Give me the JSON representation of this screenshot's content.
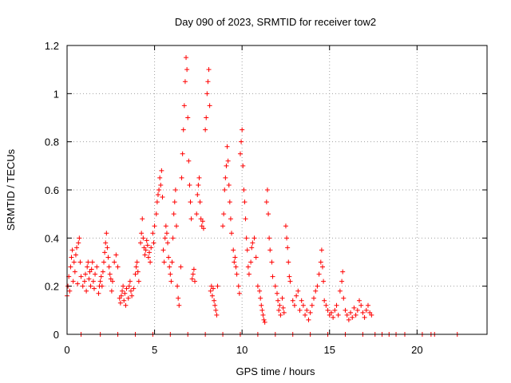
{
  "chart_data": {
    "type": "scatter",
    "title": "Day 090 of 2023, SRMTID for receiver tow2",
    "xlabel": "GPS time / hours",
    "ylabel": "SRMTID / TECUs",
    "xlim": [
      0,
      24
    ],
    "ylim": [
      0,
      1.2
    ],
    "xticks": [
      0,
      5,
      10,
      15,
      20
    ],
    "yticks": [
      0,
      0.2,
      0.4,
      0.6,
      0.8,
      1,
      1.2
    ],
    "xtick_labels": [
      "0",
      "5",
      "10",
      "15",
      "20"
    ],
    "ytick_labels": [
      "0",
      "0.2",
      "0.4",
      "0.6",
      "0.8",
      "1",
      "1.2"
    ],
    "grid": true,
    "marker": "plus",
    "series": [
      {
        "name": "tow2",
        "color": "#ff0000",
        "points": [
          [
            0.0,
            0.16
          ],
          [
            0.05,
            0.2
          ],
          [
            0.1,
            0.24
          ],
          [
            0.15,
            0.18
          ],
          [
            0.2,
            0.28
          ],
          [
            0.25,
            0.32
          ],
          [
            0.3,
            0.35
          ],
          [
            0.35,
            0.22
          ],
          [
            0.4,
            0.3
          ],
          [
            0.45,
            0.26
          ],
          [
            0.5,
            0.33
          ],
          [
            0.55,
            0.36
          ],
          [
            0.6,
            0.21
          ],
          [
            0.65,
            0.38
          ],
          [
            0.7,
            0.4
          ],
          [
            0.75,
            0.3
          ],
          [
            0.8,
            0.24
          ],
          [
            0.9,
            0.2
          ],
          [
            1.0,
            0.22
          ],
          [
            1.05,
            0.25
          ],
          [
            1.1,
            0.18
          ],
          [
            1.15,
            0.28
          ],
          [
            1.2,
            0.3
          ],
          [
            1.25,
            0.23
          ],
          [
            1.3,
            0.26
          ],
          [
            1.35,
            0.2
          ],
          [
            1.4,
            0.27
          ],
          [
            1.45,
            0.3
          ],
          [
            1.5,
            0.22
          ],
          [
            1.55,
            0.19
          ],
          [
            1.6,
            0.25
          ],
          [
            1.7,
            0.28
          ],
          [
            1.8,
            0.17
          ],
          [
            1.85,
            0.2
          ],
          [
            1.9,
            0.22
          ],
          [
            1.95,
            0.24
          ],
          [
            2.0,
            0.2
          ],
          [
            2.05,
            0.26
          ],
          [
            2.1,
            0.3
          ],
          [
            2.15,
            0.34
          ],
          [
            2.2,
            0.38
          ],
          [
            2.25,
            0.42
          ],
          [
            2.3,
            0.36
          ],
          [
            2.35,
            0.32
          ],
          [
            2.4,
            0.28
          ],
          [
            2.45,
            0.25
          ],
          [
            2.5,
            0.23
          ],
          [
            2.55,
            0.18
          ],
          [
            2.6,
            0.22
          ],
          [
            2.7,
            0.3
          ],
          [
            2.8,
            0.33
          ],
          [
            2.9,
            0.28
          ],
          [
            3.0,
            0.15
          ],
          [
            3.05,
            0.13
          ],
          [
            3.1,
            0.16
          ],
          [
            3.15,
            0.18
          ],
          [
            3.2,
            0.2
          ],
          [
            3.25,
            0.14
          ],
          [
            3.3,
            0.17
          ],
          [
            3.35,
            0.12
          ],
          [
            3.4,
            0.19
          ],
          [
            3.5,
            0.15
          ],
          [
            3.55,
            0.2
          ],
          [
            3.6,
            0.22
          ],
          [
            3.65,
            0.18
          ],
          [
            3.7,
            0.16
          ],
          [
            3.8,
            0.19
          ],
          [
            3.9,
            0.25
          ],
          [
            3.95,
            0.28
          ],
          [
            4.0,
            0.3
          ],
          [
            4.05,
            0.26
          ],
          [
            4.1,
            0.22
          ],
          [
            4.2,
            0.38
          ],
          [
            4.25,
            0.42
          ],
          [
            4.3,
            0.48
          ],
          [
            4.35,
            0.4
          ],
          [
            4.4,
            0.36
          ],
          [
            4.45,
            0.33
          ],
          [
            4.5,
            0.35
          ],
          [
            4.55,
            0.39
          ],
          [
            4.6,
            0.37
          ],
          [
            4.65,
            0.32
          ],
          [
            4.7,
            0.34
          ],
          [
            4.75,
            0.3
          ],
          [
            4.8,
            0.36
          ],
          [
            4.9,
            0.42
          ],
          [
            4.95,
            0.38
          ],
          [
            5.0,
            0.45
          ],
          [
            5.1,
            0.5
          ],
          [
            5.15,
            0.55
          ],
          [
            5.2,
            0.58
          ],
          [
            5.25,
            0.6
          ],
          [
            5.3,
            0.65
          ],
          [
            5.35,
            0.62
          ],
          [
            5.4,
            0.68
          ],
          [
            5.45,
            0.57
          ],
          [
            5.5,
            0.35
          ],
          [
            5.55,
            0.3
          ],
          [
            5.6,
            0.4
          ],
          [
            5.65,
            0.45
          ],
          [
            5.7,
            0.42
          ],
          [
            5.75,
            0.38
          ],
          [
            5.8,
            0.32
          ],
          [
            5.85,
            0.28
          ],
          [
            5.9,
            0.25
          ],
          [
            5.95,
            0.22
          ],
          [
            6.0,
            0.3
          ],
          [
            6.05,
            0.4
          ],
          [
            6.1,
            0.5
          ],
          [
            6.15,
            0.55
          ],
          [
            6.2,
            0.6
          ],
          [
            6.25,
            0.45
          ],
          [
            6.3,
            0.2
          ],
          [
            6.35,
            0.15
          ],
          [
            6.4,
            0.12
          ],
          [
            6.5,
            0.28
          ],
          [
            6.55,
            0.65
          ],
          [
            6.6,
            0.75
          ],
          [
            6.65,
            0.85
          ],
          [
            6.7,
            0.95
          ],
          [
            6.75,
            1.05
          ],
          [
            6.8,
            1.15
          ],
          [
            6.85,
            1.1
          ],
          [
            6.9,
            0.9
          ],
          [
            6.95,
            0.72
          ],
          [
            7.0,
            0.62
          ],
          [
            7.05,
            0.55
          ],
          [
            7.1,
            0.48
          ],
          [
            7.15,
            0.23
          ],
          [
            7.2,
            0.25
          ],
          [
            7.25,
            0.27
          ],
          [
            7.3,
            0.22
          ],
          [
            7.4,
            0.5
          ],
          [
            7.45,
            0.58
          ],
          [
            7.5,
            0.62
          ],
          [
            7.55,
            0.65
          ],
          [
            7.6,
            0.55
          ],
          [
            7.65,
            0.48
          ],
          [
            7.7,
            0.45
          ],
          [
            7.75,
            0.47
          ],
          [
            7.8,
            0.44
          ],
          [
            7.9,
            0.85
          ],
          [
            7.95,
            0.9
          ],
          [
            8.0,
            1.0
          ],
          [
            8.05,
            1.05
          ],
          [
            8.1,
            1.1
          ],
          [
            8.15,
            0.95
          ],
          [
            8.2,
            0.18
          ],
          [
            8.25,
            0.2
          ],
          [
            8.3,
            0.16
          ],
          [
            8.35,
            0.19
          ],
          [
            8.4,
            0.14
          ],
          [
            8.45,
            0.12
          ],
          [
            8.5,
            0.1
          ],
          [
            8.55,
            0.08
          ],
          [
            8.6,
            0.2
          ],
          [
            8.9,
            0.45
          ],
          [
            8.95,
            0.5
          ],
          [
            9.0,
            0.6
          ],
          [
            9.05,
            0.65
          ],
          [
            9.1,
            0.7
          ],
          [
            9.15,
            0.78
          ],
          [
            9.2,
            0.72
          ],
          [
            9.25,
            0.62
          ],
          [
            9.3,
            0.55
          ],
          [
            9.35,
            0.48
          ],
          [
            9.4,
            0.42
          ],
          [
            9.5,
            0.35
          ],
          [
            9.55,
            0.3
          ],
          [
            9.6,
            0.32
          ],
          [
            9.65,
            0.28
          ],
          [
            9.7,
            0.25
          ],
          [
            9.8,
            0.2
          ],
          [
            9.85,
            0.17
          ],
          [
            9.9,
            0.75
          ],
          [
            9.95,
            0.8
          ],
          [
            10.0,
            0.85
          ],
          [
            10.05,
            0.7
          ],
          [
            10.1,
            0.6
          ],
          [
            10.15,
            0.55
          ],
          [
            10.2,
            0.48
          ],
          [
            10.25,
            0.4
          ],
          [
            10.3,
            0.35
          ],
          [
            10.35,
            0.28
          ],
          [
            10.4,
            0.25
          ],
          [
            10.5,
            0.3
          ],
          [
            10.55,
            0.36
          ],
          [
            10.6,
            0.38
          ],
          [
            10.7,
            0.4
          ],
          [
            10.8,
            0.32
          ],
          [
            10.9,
            0.2
          ],
          [
            11.0,
            0.18
          ],
          [
            11.05,
            0.15
          ],
          [
            11.1,
            0.12
          ],
          [
            11.15,
            0.1
          ],
          [
            11.2,
            0.08
          ],
          [
            11.25,
            0.06
          ],
          [
            11.3,
            0.05
          ],
          [
            11.4,
            0.55
          ],
          [
            11.45,
            0.6
          ],
          [
            11.5,
            0.5
          ],
          [
            11.55,
            0.4
          ],
          [
            11.6,
            0.35
          ],
          [
            11.7,
            0.3
          ],
          [
            11.75,
            0.24
          ],
          [
            11.9,
            0.2
          ],
          [
            12.0,
            0.17
          ],
          [
            12.05,
            0.14
          ],
          [
            12.1,
            0.1
          ],
          [
            12.15,
            0.12
          ],
          [
            12.2,
            0.08
          ],
          [
            12.3,
            0.15
          ],
          [
            12.35,
            0.11
          ],
          [
            12.4,
            0.09
          ],
          [
            12.5,
            0.45
          ],
          [
            12.55,
            0.4
          ],
          [
            12.6,
            0.36
          ],
          [
            12.65,
            0.3
          ],
          [
            12.7,
            0.24
          ],
          [
            12.75,
            0.22
          ],
          [
            12.9,
            0.14
          ],
          [
            13.0,
            0.12
          ],
          [
            13.1,
            0.16
          ],
          [
            13.2,
            0.18
          ],
          [
            13.3,
            0.1
          ],
          [
            13.4,
            0.14
          ],
          [
            13.5,
            0.12
          ],
          [
            13.6,
            0.08
          ],
          [
            13.7,
            0.1
          ],
          [
            13.8,
            0.06
          ],
          [
            13.9,
            0.09
          ],
          [
            14.0,
            0.12
          ],
          [
            14.1,
            0.15
          ],
          [
            14.2,
            0.18
          ],
          [
            14.3,
            0.2
          ],
          [
            14.4,
            0.25
          ],
          [
            14.5,
            0.3
          ],
          [
            14.55,
            0.35
          ],
          [
            14.6,
            0.28
          ],
          [
            14.65,
            0.22
          ],
          [
            14.7,
            0.14
          ],
          [
            14.8,
            0.12
          ],
          [
            14.9,
            0.1
          ],
          [
            15.0,
            0.08
          ],
          [
            15.1,
            0.09
          ],
          [
            15.2,
            0.07
          ],
          [
            15.3,
            0.1
          ],
          [
            15.4,
            0.12
          ],
          [
            15.5,
            0.08
          ],
          [
            15.6,
            0.18
          ],
          [
            15.7,
            0.22
          ],
          [
            15.75,
            0.26
          ],
          [
            15.8,
            0.15
          ],
          [
            15.9,
            0.1
          ],
          [
            16.0,
            0.08
          ],
          [
            16.1,
            0.06
          ],
          [
            16.2,
            0.09
          ],
          [
            16.3,
            0.07
          ],
          [
            16.4,
            0.11
          ],
          [
            16.5,
            0.08
          ],
          [
            16.6,
            0.1
          ],
          [
            16.7,
            0.14
          ],
          [
            16.8,
            0.12
          ],
          [
            16.9,
            0.09
          ],
          [
            17.0,
            0.07
          ],
          [
            17.1,
            0.1
          ],
          [
            17.2,
            0.12
          ],
          [
            17.3,
            0.09
          ],
          [
            17.4,
            0.08
          ],
          [
            0.8,
            0.0
          ],
          [
            1.9,
            0.0
          ],
          [
            2.9,
            0.0
          ],
          [
            3.9,
            0.0
          ],
          [
            4.9,
            0.0
          ],
          [
            5.9,
            0.0
          ],
          [
            6.9,
            0.0
          ],
          [
            7.9,
            0.0
          ],
          [
            8.9,
            0.0
          ],
          [
            9.9,
            0.0
          ],
          [
            10.9,
            0.0
          ],
          [
            11.9,
            0.0
          ],
          [
            12.9,
            0.0
          ],
          [
            13.9,
            0.0
          ],
          [
            14.9,
            0.0
          ],
          [
            15.9,
            0.0
          ],
          [
            16.9,
            0.0
          ],
          [
            17.6,
            0.0
          ],
          [
            18.0,
            0.0
          ],
          [
            18.4,
            0.0
          ],
          [
            18.8,
            0.0
          ],
          [
            19.3,
            0.0
          ],
          [
            20.3,
            0.0
          ],
          [
            20.8,
            0.0
          ],
          [
            21.0,
            0.0
          ],
          [
            22.3,
            0.0
          ]
        ]
      }
    ]
  }
}
